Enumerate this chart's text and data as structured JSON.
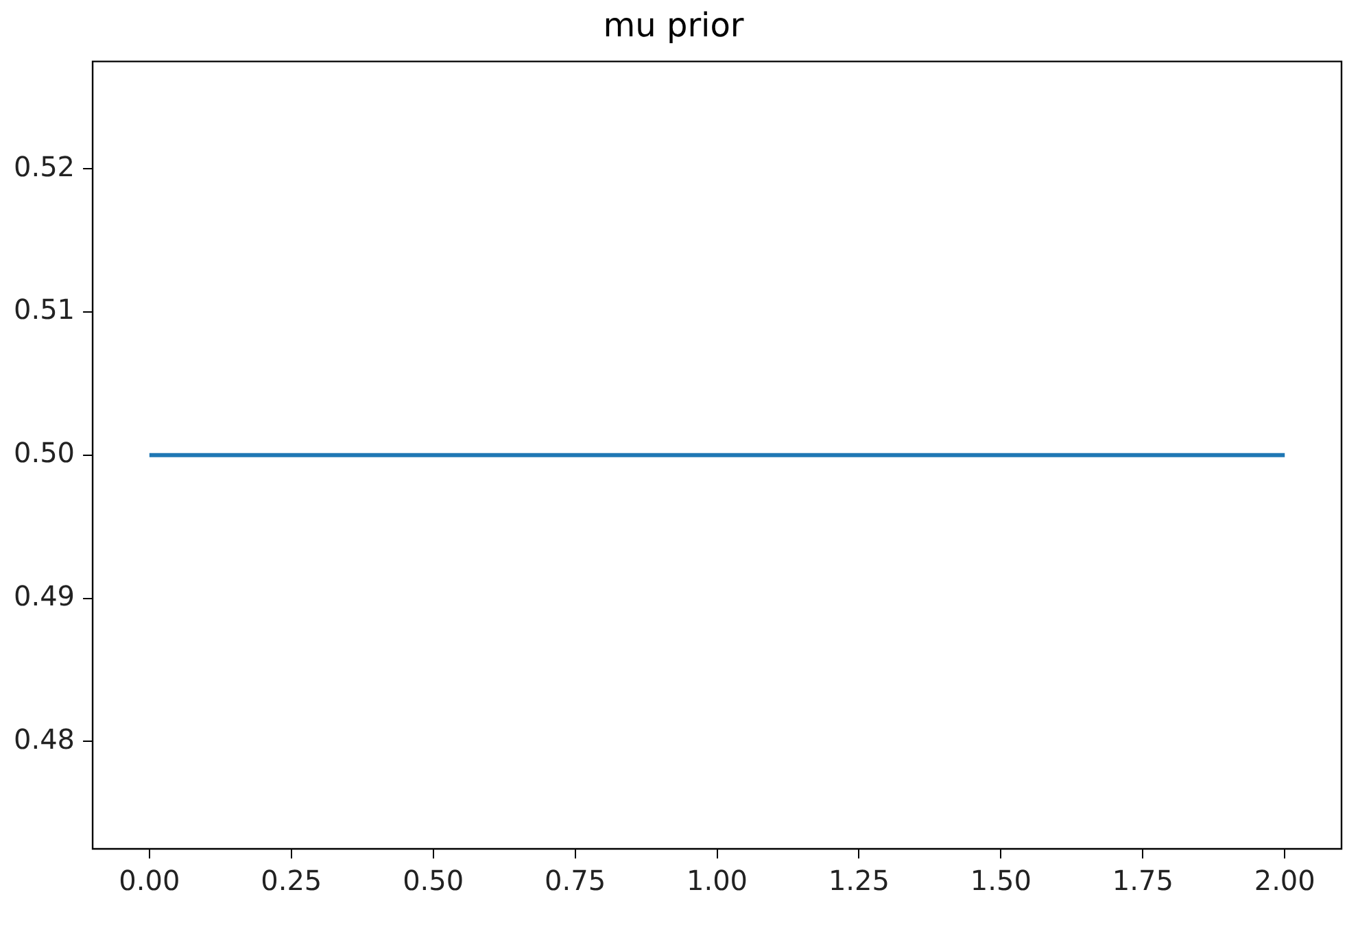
{
  "chart_data": {
    "type": "line",
    "title": "mu prior",
    "x": [
      0,
      2
    ],
    "series": [
      {
        "color": "#1f77b4",
        "values": [
          0.5,
          0.5
        ]
      }
    ],
    "xlim": [
      -0.1,
      2.1
    ],
    "xticks": [
      {
        "value": 0,
        "label": "0.00"
      },
      {
        "value": 0.25,
        "label": "0.25"
      },
      {
        "value": 0.5,
        "label": "0.50"
      },
      {
        "value": 0.75,
        "label": "0.75"
      },
      {
        "value": 1,
        "label": "1.00"
      },
      {
        "value": 1.25,
        "label": "1.25"
      },
      {
        "value": 1.5,
        "label": "1.50"
      },
      {
        "value": 1.75,
        "label": "1.75"
      },
      {
        "value": 2,
        "label": "2.00"
      }
    ],
    "ylim": [
      0.4725,
      0.5275
    ],
    "yticks": [
      {
        "value": 0.48,
        "label": "0.48"
      },
      {
        "value": 0.49,
        "label": "0.49"
      },
      {
        "value": 0.5,
        "label": "0.50"
      },
      {
        "value": 0.51,
        "label": "0.51"
      },
      {
        "value": 0.52,
        "label": "0.52"
      }
    ],
    "grid": false,
    "legend": false,
    "marker": "none",
    "line_style": "solid"
  }
}
